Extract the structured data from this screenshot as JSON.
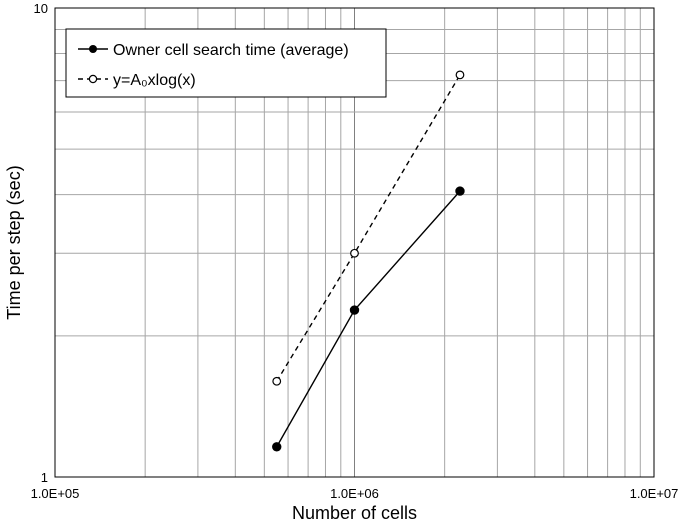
{
  "chart_data": {
    "type": "line",
    "title": "",
    "xlabel": "Number of cells",
    "ylabel": "Time per step (sec)",
    "x_scale": "log",
    "y_scale": "log",
    "xlim": [
      100000,
      10000000
    ],
    "ylim": [
      1,
      10
    ],
    "x_tick_labels": [
      "1.0E+05",
      "1.0E+06",
      "1.0E+07"
    ],
    "y_tick_labels": [
      "1",
      "10"
    ],
    "grid": true,
    "legend_position": "top-left",
    "series": [
      {
        "name": "Owner cell search time (average)",
        "x": [
          550000,
          1000000,
          2250000
        ],
        "y": [
          1.16,
          2.27,
          4.07
        ],
        "style": "solid",
        "marker": "filled-circle",
        "color": "#000000"
      },
      {
        "name": "y=A₀xlog(x)",
        "x": [
          550000,
          1000000,
          2250000
        ],
        "y": [
          1.6,
          3.0,
          7.2
        ],
        "style": "dashed",
        "marker": "open-circle",
        "color": "#000000"
      }
    ]
  }
}
